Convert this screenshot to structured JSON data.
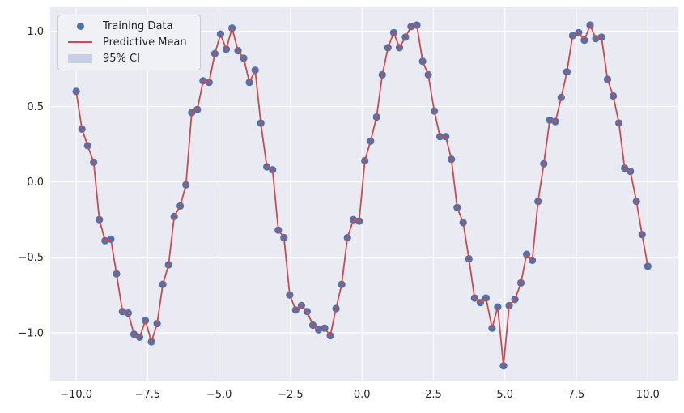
{
  "chart_data": {
    "type": "scatter",
    "title": "",
    "xlabel": "",
    "ylabel": "",
    "grid": true,
    "legend_position": "upper left",
    "x_tick_values": [
      -10.0,
      -7.5,
      -5.0,
      -2.5,
      0.0,
      2.5,
      5.0,
      7.5,
      10.0
    ],
    "x_tick_labels": [
      "−10.0",
      "−7.5",
      "−5.0",
      "−2.5",
      "0.0",
      "2.5",
      "5.0",
      "7.5",
      "10.0"
    ],
    "y_tick_values": [
      1.0,
      0.5,
      0.0,
      -0.5,
      -1.0
    ],
    "y_tick_labels": [
      "1.0",
      "0.5",
      "0.0",
      "−0.5",
      "−1.0"
    ],
    "xlim": [
      -10.91,
      11.04
    ],
    "ylim": [
      -1.318,
      1.158
    ],
    "x": [
      -10.0,
      -9.8,
      -9.6,
      -9.39,
      -9.19,
      -8.99,
      -8.79,
      -8.59,
      -8.38,
      -8.18,
      -7.98,
      -7.78,
      -7.58,
      -7.37,
      -7.17,
      -6.97,
      -6.77,
      -6.57,
      -6.36,
      -6.16,
      -5.96,
      -5.76,
      -5.56,
      -5.35,
      -5.15,
      -4.95,
      -4.75,
      -4.55,
      -4.34,
      -4.14,
      -3.94,
      -3.74,
      -3.54,
      -3.33,
      -3.13,
      -2.93,
      -2.73,
      -2.53,
      -2.32,
      -2.12,
      -1.92,
      -1.72,
      -1.52,
      -1.31,
      -1.11,
      -0.91,
      -0.71,
      -0.51,
      -0.3,
      -0.1,
      0.1,
      0.3,
      0.51,
      0.71,
      0.91,
      1.11,
      1.31,
      1.52,
      1.72,
      1.92,
      2.12,
      2.32,
      2.53,
      2.73,
      2.93,
      3.13,
      3.33,
      3.54,
      3.74,
      3.94,
      4.14,
      4.34,
      4.55,
      4.75,
      4.95,
      5.15,
      5.35,
      5.56,
      5.76,
      5.96,
      6.16,
      6.36,
      6.57,
      6.77,
      6.97,
      7.17,
      7.37,
      7.58,
      7.78,
      7.98,
      8.18,
      8.38,
      8.59,
      8.79,
      8.99,
      9.19,
      9.39,
      9.6,
      9.8,
      10.0
    ],
    "y": [
      0.6,
      0.35,
      0.24,
      0.13,
      -0.25,
      -0.39,
      -0.38,
      -0.61,
      -0.86,
      -0.87,
      -1.01,
      -1.03,
      -0.92,
      -1.06,
      -0.94,
      -0.68,
      -0.55,
      -0.23,
      -0.16,
      -0.02,
      0.46,
      0.48,
      0.67,
      0.66,
      0.85,
      0.98,
      0.88,
      1.02,
      0.87,
      0.82,
      0.66,
      0.74,
      0.39,
      0.1,
      0.08,
      -0.32,
      -0.37,
      -0.75,
      -0.85,
      -0.82,
      -0.86,
      -0.95,
      -0.98,
      -0.97,
      -1.02,
      -0.84,
      -0.68,
      -0.37,
      -0.25,
      -0.26,
      0.14,
      0.27,
      0.43,
      0.71,
      0.89,
      0.99,
      0.89,
      0.96,
      1.03,
      1.04,
      0.8,
      0.71,
      0.47,
      0.3,
      0.3,
      0.15,
      -0.17,
      -0.27,
      -0.51,
      -0.77,
      -0.8,
      -0.77,
      -0.97,
      -0.83,
      -1.22,
      -0.82,
      -0.78,
      -0.67,
      -0.48,
      -0.52,
      -0.13,
      0.12,
      0.41,
      0.4,
      0.56,
      0.73,
      0.97,
      0.99,
      0.94,
      1.04,
      0.95,
      0.96,
      0.68,
      0.57,
      0.39,
      0.09,
      0.07,
      -0.13,
      -0.35,
      -0.56
    ],
    "series": [
      {
        "name": "Training Data",
        "kind": "scatter",
        "color": "#4C72B0",
        "marker": "circle",
        "uses": "x,y"
      },
      {
        "name": "Predictive Mean",
        "kind": "line",
        "color": "#C44E52",
        "uses": "x,y"
      },
      {
        "name": "95% CI",
        "kind": "band",
        "color": "#C6CFE5",
        "band_visibility": "tight around mean, not visibly wider than line"
      }
    ]
  },
  "colors": {
    "figure_bg": "#FFFFFF",
    "axes_bg": "#EAEAF2",
    "grid": "#FFFFFF",
    "tick_text": "#262626",
    "legend_bg": "#F0F0F7",
    "legend_border": "#CCCCCC"
  }
}
